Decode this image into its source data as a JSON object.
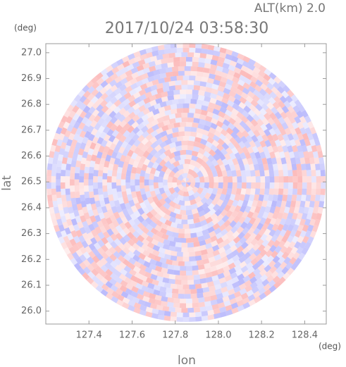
{
  "chart_data": {
    "type": "radar-ppi",
    "title": "2017/10/24 03:58:30",
    "annotation": "ALT(km) 2.0",
    "x_label": "lon",
    "y_label": "lat",
    "x_unit": "(deg)",
    "y_unit": "(deg)",
    "xlim": [
      127.2,
      128.5
    ],
    "ylim": [
      25.95,
      27.035
    ],
    "xticks": [
      127.4,
      127.6,
      127.8,
      {
        "value": 128,
        "label": "128.0"
      },
      128.2,
      128.4
    ],
    "yticks": [
      {
        "value": 26,
        "label": "26.0"
      },
      26.1,
      26.2,
      26.3,
      26.4,
      26.5,
      26.6,
      26.7,
      26.8,
      26.9,
      {
        "value": 27,
        "label": "27.0"
      }
    ]
  }
}
